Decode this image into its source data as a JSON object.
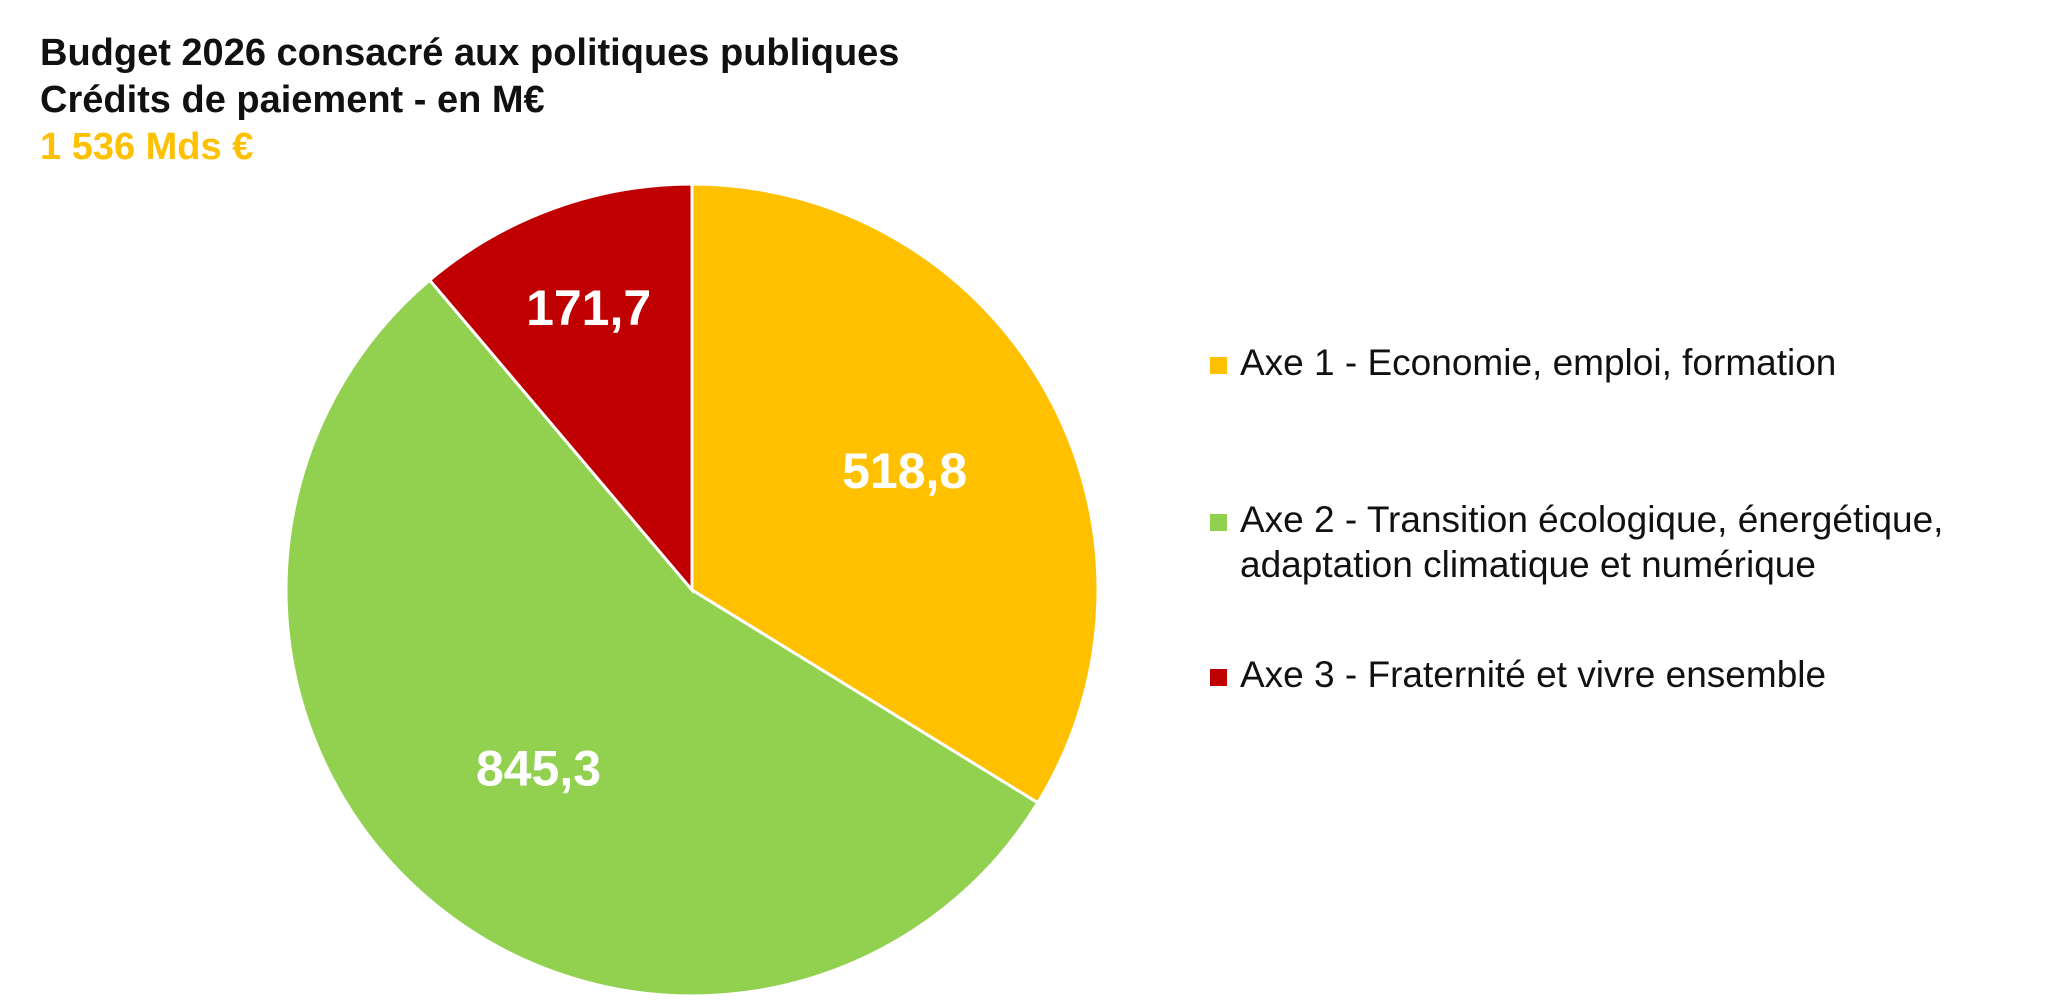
{
  "title": "Budget 2026 consacré aux politiques publiques",
  "subtitle": "Crédits de paiement - en M€",
  "total": "1 536 Mds €",
  "colors": {
    "axe1": "#FFC000",
    "axe2": "#92D050",
    "axe3": "#C00000",
    "total_text": "#FFC000"
  },
  "chart_data": {
    "type": "pie",
    "title": "Budget 2026 consacré aux politiques publiques",
    "subtitle": "Crédits de paiement - en M€",
    "legend_placement": "right",
    "slices": [
      {
        "label": "Axe 1 - Economie, emploi, formation",
        "value": 518.8,
        "value_label": "518,8",
        "color": "#FFC000"
      },
      {
        "label": "Axe 2 - Transition écologique, énergétique, adaptation climatique et numérique",
        "value": 845.3,
        "value_label": "845,3",
        "color": "#92D050"
      },
      {
        "label": "Axe 3 - Fraternité et vivre ensemble",
        "value": 171.7,
        "value_label": "171,7",
        "color": "#C00000"
      }
    ]
  },
  "legend": {
    "items": [
      {
        "label": "Axe 1 - Economie, emploi, formation"
      },
      {
        "label": "Axe 2 - Transition écologique, énergétique, adaptation climatique et numérique"
      },
      {
        "label": "Axe 3 - Fraternité et vivre ensemble"
      }
    ]
  }
}
